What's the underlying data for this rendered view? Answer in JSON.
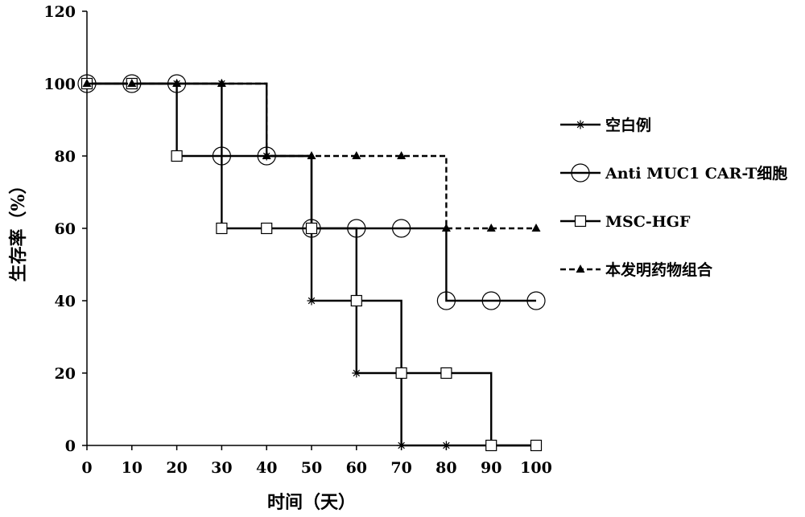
{
  "chart_data": {
    "type": "line",
    "step": true,
    "xlabel": "时间（天）",
    "ylabel": "生存率（%）",
    "xlim": [
      0,
      100
    ],
    "ylim": [
      0,
      120
    ],
    "x_ticks": [
      0,
      10,
      20,
      30,
      40,
      50,
      60,
      70,
      80,
      90,
      100
    ],
    "y_ticks": [
      0,
      20,
      40,
      60,
      80,
      100,
      120
    ],
    "grid": false,
    "legend_position": "right",
    "series": [
      {
        "name": "空白例",
        "marker": "star",
        "line": "solid",
        "x": [
          0,
          10,
          20,
          30,
          40,
          50,
          60,
          70,
          80,
          90,
          100
        ],
        "y": [
          100,
          100,
          100,
          100,
          80,
          40,
          20,
          0,
          0,
          0,
          0
        ],
        "marker_x": [
          0,
          10,
          20,
          30,
          40,
          50,
          60,
          70,
          80,
          90
        ],
        "color": "#000000"
      },
      {
        "name": "Anti MUC1 CAR-T细胞",
        "marker": "circle",
        "line": "solid",
        "x": [
          0,
          10,
          20,
          30,
          40,
          50,
          60,
          70,
          80,
          90,
          100
        ],
        "y": [
          100,
          100,
          100,
          80,
          80,
          60,
          60,
          60,
          40,
          40,
          40
        ],
        "marker_x": [
          0,
          10,
          20,
          30,
          40,
          50,
          60,
          70,
          80,
          90,
          100
        ],
        "color": "#000000"
      },
      {
        "name": "MSC-HGF",
        "marker": "square",
        "line": "solid",
        "x": [
          0,
          10,
          20,
          30,
          40,
          50,
          60,
          70,
          80,
          90,
          100
        ],
        "y": [
          100,
          100,
          80,
          60,
          60,
          60,
          40,
          20,
          20,
          0,
          0
        ],
        "marker_x": [
          0,
          10,
          20,
          30,
          40,
          50,
          60,
          70,
          80,
          90,
          100
        ],
        "color": "#000000"
      },
      {
        "name": "本发明药物组合",
        "marker": "triangle",
        "line": "dashed",
        "x": [
          0,
          10,
          20,
          30,
          40,
          50,
          60,
          70,
          80,
          90,
          100
        ],
        "y": [
          100,
          100,
          100,
          100,
          80,
          80,
          80,
          80,
          60,
          60,
          60
        ],
        "marker_x": [
          0,
          10,
          20,
          30,
          40,
          50,
          60,
          70,
          80,
          90,
          100
        ],
        "color": "#000000"
      }
    ]
  }
}
